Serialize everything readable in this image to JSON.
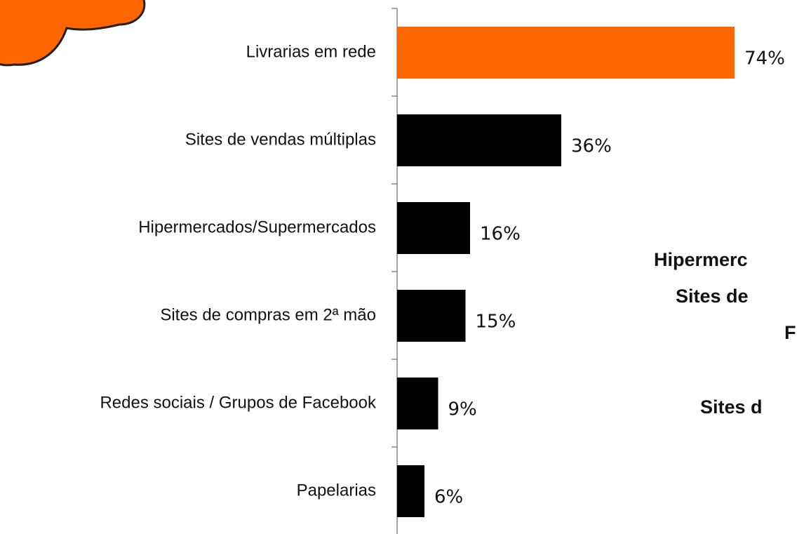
{
  "chart_data": {
    "type": "hbar",
    "categories": [
      "Livrarias em rede",
      "Sites de vendas múltiplas",
      "Hipermercados/Supermercados",
      "Sites de compras em 2ª mão",
      "Redes sociais / Grupos de Facebook",
      "Papelarias"
    ],
    "values": [
      74,
      36,
      16,
      15,
      9,
      6
    ],
    "value_labels": [
      "74%",
      "36%",
      "16%",
      "15%",
      "9%",
      "6%"
    ],
    "colors": [
      "#ff6600",
      "#000000",
      "#000000",
      "#000000",
      "#000000",
      "#000000"
    ],
    "annotations": [
      "Hipermerc",
      "Sites de",
      "F",
      "Sites d"
    ]
  }
}
